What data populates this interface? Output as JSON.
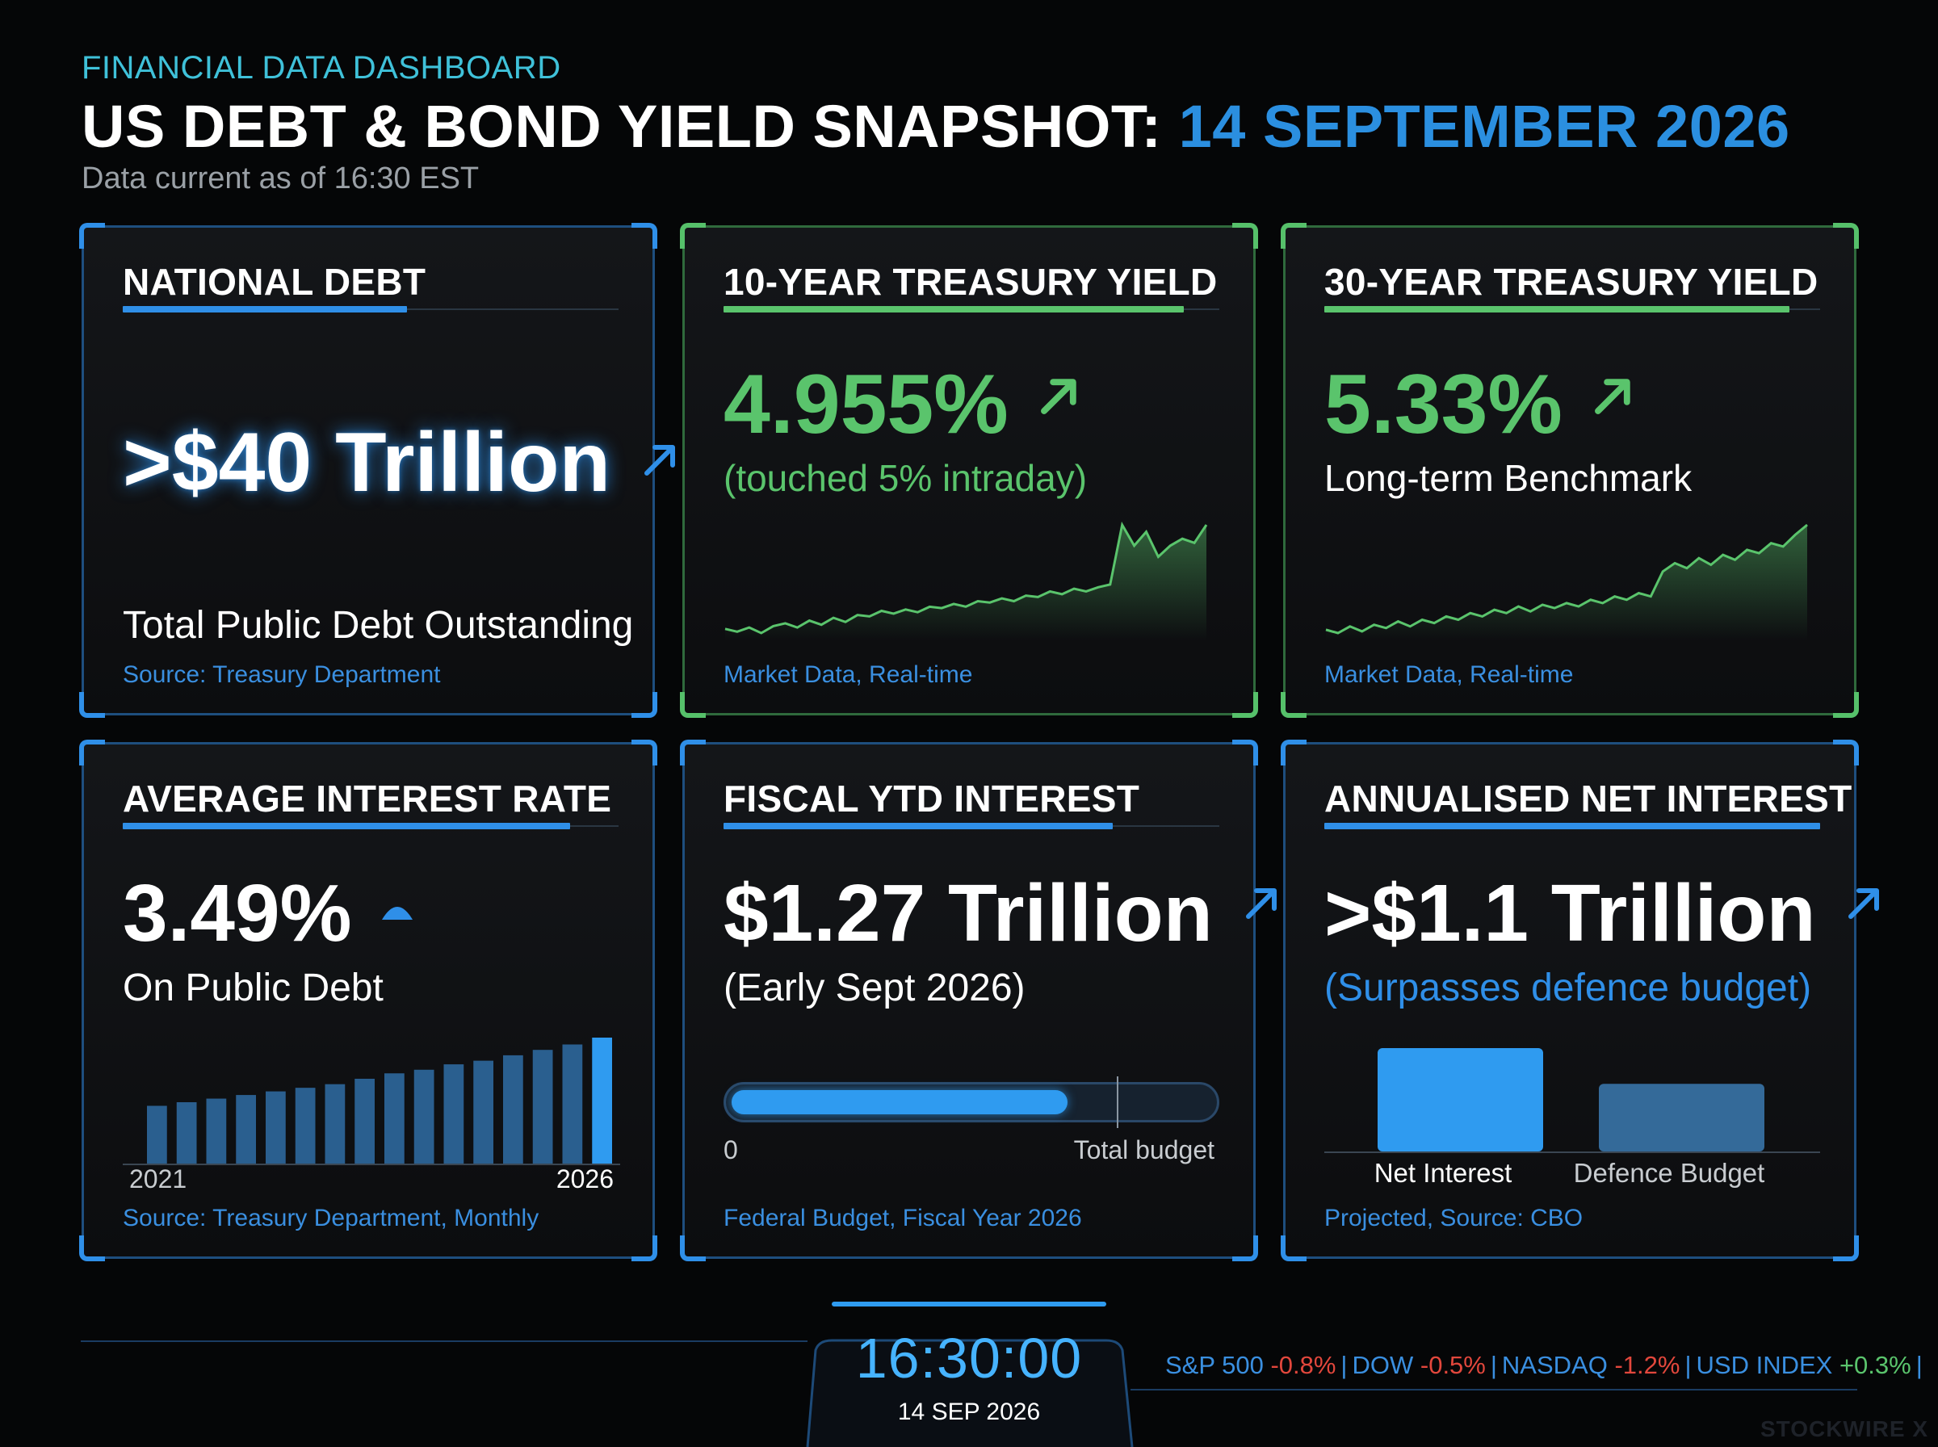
{
  "header": {
    "kicker": "FINANCIAL DATA DASHBOARD",
    "title_main": "US DEBT & BOND YIELD SNAPSHOT:",
    "title_date": "14 SEPTEMBER 2026",
    "as_of": "Data current as of 16:30 EST"
  },
  "colors": {
    "blue": "#2f8fe8",
    "green": "#5ac46c",
    "cyan": "#3fc1d9",
    "negative": "#e2473c"
  },
  "cards": {
    "national_debt": {
      "title": "NATIONAL DEBT",
      "value": ">$40 Trillion",
      "label": "Total Public Debt Outstanding",
      "source": "Source: Treasury Department",
      "icon": "trend-up-arrow-icon"
    },
    "ten_year": {
      "title": "10-YEAR TREASURY YIELD",
      "value": "4.955%",
      "note": "(touched 5% intraday)",
      "source": "Market Data, Real-time",
      "icon": "trend-up-arrow-icon"
    },
    "thirty_year": {
      "title": "30-YEAR TREASURY YIELD",
      "value": "5.33%",
      "note": "Long-term Benchmark",
      "source": "Market Data, Real-time",
      "icon": "trend-up-arrow-icon"
    },
    "avg_rate": {
      "title": "AVERAGE INTEREST RATE",
      "value": "3.49%",
      "note": "On Public Debt",
      "axis_start": "2021",
      "axis_end": "2026",
      "source": "Source: Treasury Department, Monthly",
      "icon": "up-caret-icon"
    },
    "fiscal_ytd": {
      "title": "FISCAL YTD INTEREST",
      "value": "$1.27 Trillion",
      "note": "(Early Sept 2026)",
      "progress_min": "0",
      "progress_max_label": "Total budget",
      "progress_fraction": 0.7,
      "source": "Federal Budget, Fiscal Year 2026",
      "icon": "trend-up-arrow-icon"
    },
    "annual_net": {
      "title": "ANNUALISED NET INTEREST",
      "value": ">$1.1 Trillion",
      "note": "(Surpasses defence budget)",
      "bar1_label": "Net Interest",
      "bar2_label": "Defence Budget",
      "source": "Projected, Source: CBO",
      "icon": "trend-up-arrow-icon"
    }
  },
  "chart_data": [
    {
      "type": "line",
      "id": "ten_year_sparkline",
      "values": [
        4.2,
        4.18,
        4.21,
        4.17,
        4.22,
        4.24,
        4.21,
        4.26,
        4.23,
        4.28,
        4.25,
        4.3,
        4.29,
        4.33,
        4.31,
        4.34,
        4.32,
        4.36,
        4.35,
        4.38,
        4.36,
        4.4,
        4.39,
        4.42,
        4.4,
        4.44,
        4.43,
        4.47,
        4.45,
        4.49,
        4.47,
        4.5,
        4.52,
        4.95,
        4.8,
        4.9,
        4.72,
        4.8,
        4.85,
        4.82,
        4.95
      ]
    },
    {
      "type": "line",
      "id": "thirty_year_sparkline",
      "values": [
        4.7,
        4.68,
        4.72,
        4.69,
        4.73,
        4.71,
        4.75,
        4.72,
        4.76,
        4.74,
        4.78,
        4.76,
        4.8,
        4.78,
        4.82,
        4.8,
        4.84,
        4.81,
        4.85,
        4.83,
        4.86,
        4.84,
        4.88,
        4.86,
        4.9,
        4.88,
        4.92,
        4.9,
        5.05,
        5.1,
        5.07,
        5.13,
        5.09,
        5.15,
        5.12,
        5.18,
        5.16,
        5.22,
        5.2,
        5.27,
        5.33
      ]
    },
    {
      "type": "bar",
      "id": "avg_rate_bars",
      "x_range": [
        "2021",
        "2026"
      ],
      "values": [
        1.6,
        1.7,
        1.8,
        1.9,
        2.0,
        2.1,
        2.2,
        2.35,
        2.5,
        2.6,
        2.75,
        2.85,
        3.0,
        3.15,
        3.3,
        3.49
      ]
    },
    {
      "type": "bar",
      "id": "interest_vs_defence",
      "categories": [
        "Net Interest",
        "Defence Budget"
      ],
      "values": [
        1.1,
        0.72
      ]
    }
  ],
  "footer": {
    "clock_time": "16:30:00",
    "clock_date": "14 SEP 2026",
    "ticker": [
      {
        "name": "S&P 500",
        "change": "-0.8%",
        "dir": "neg"
      },
      {
        "name": "DOW",
        "change": "-0.5%",
        "dir": "neg"
      },
      {
        "name": "NASDAQ",
        "change": "-1.2%",
        "dir": "neg"
      },
      {
        "name": "USD INDEX",
        "change": "+0.3%",
        "dir": "pos"
      }
    ],
    "brand": "STOCKWIRE X"
  }
}
